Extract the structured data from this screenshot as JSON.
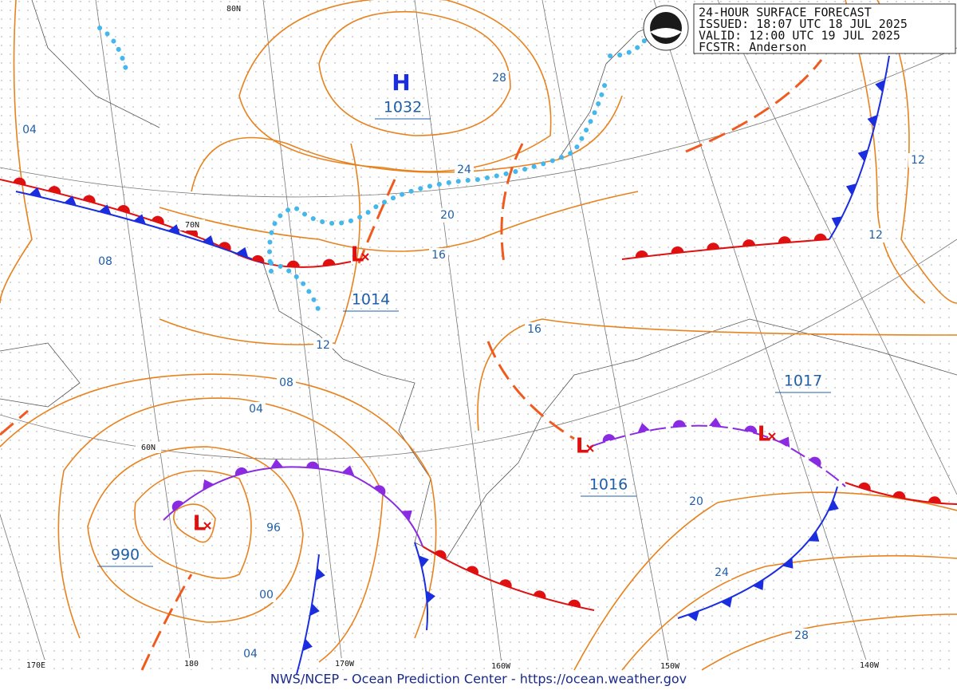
{
  "header": {
    "lines": [
      "24-HOUR SURFACE FORECAST",
      "ISSUED: 18:07 UTC 18 JUL 2025",
      "VALID: 12:00 UTC 19 JUL 2025",
      "FCSTR: Anderson"
    ]
  },
  "pressure_centers": [
    {
      "symbol": "H",
      "value": "1032"
    },
    {
      "symbol": "L",
      "value": "1014"
    },
    {
      "symbol": "L",
      "value": "1016"
    },
    {
      "symbol": "L",
      "value": "1017"
    },
    {
      "symbol": "L",
      "value": "990"
    }
  ],
  "isobar_labels": [
    "04",
    "08",
    "28",
    "24",
    "20",
    "16",
    "12",
    "12",
    "16",
    "12",
    "08",
    "04",
    "96",
    "00",
    "04",
    "20",
    "24",
    "28"
  ],
  "grid_labels": [
    "80N",
    "70N",
    "60N",
    "170E",
    "180",
    "170W",
    "160W",
    "150W",
    "140W"
  ],
  "footer": "NWS/NCEP - Ocean Prediction Center - https://ocean.weather.gov"
}
